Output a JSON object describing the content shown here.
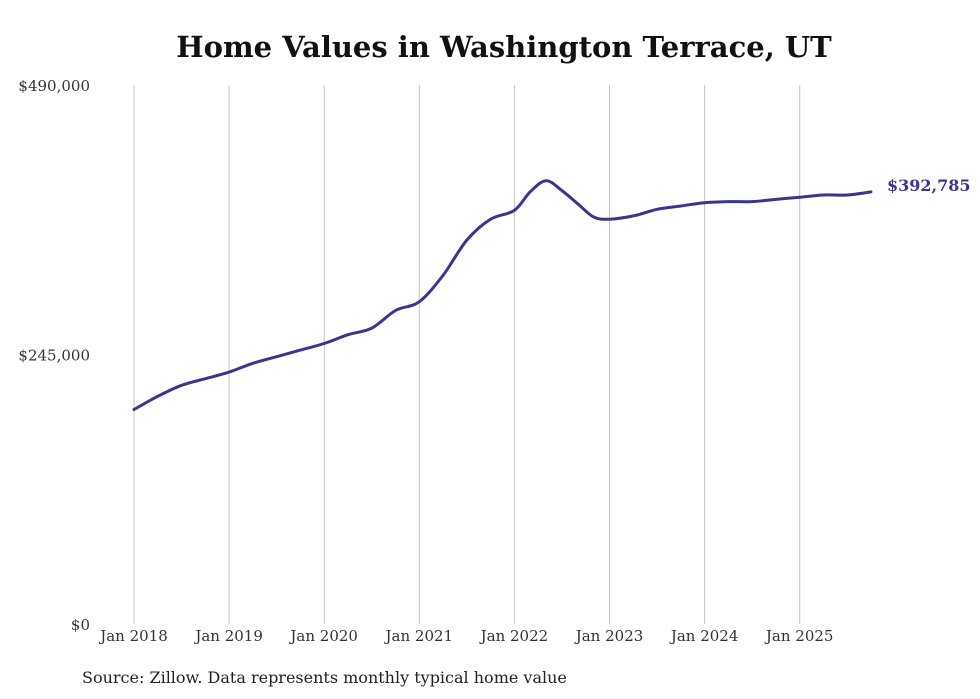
{
  "chart_data": {
    "type": "line",
    "title": "Home Values in Washington Terrace, UT",
    "xlabel": "",
    "ylabel": "",
    "x_ticks": [
      "Jan 2018",
      "Jan 2019",
      "Jan 2020",
      "Jan 2021",
      "Jan 2022",
      "Jan 2023",
      "Jan 2024",
      "Jan 2025"
    ],
    "y_ticks": [
      "$0",
      "$245,000",
      "$490,000"
    ],
    "y_tick_values": [
      0,
      245000,
      490000
    ],
    "ylim": [
      0,
      490000
    ],
    "xlim": [
      "2018-01",
      "2025-10"
    ],
    "grid": "vertical",
    "line_color": "#3b3590",
    "end_label": "$392,785",
    "series": [
      {
        "x": [
          "2018-01",
          "2018-04",
          "2018-07",
          "2018-10",
          "2019-01",
          "2019-04",
          "2019-07",
          "2019-10",
          "2020-01",
          "2020-04",
          "2020-07",
          "2020-10",
          "2021-01",
          "2021-04",
          "2021-07",
          "2021-10",
          "2022-01",
          "2022-03",
          "2022-05",
          "2022-07",
          "2022-09",
          "2022-11",
          "2023-01",
          "2023-04",
          "2023-07",
          "2023-10",
          "2024-01",
          "2024-04",
          "2024-07",
          "2024-10",
          "2025-01",
          "2025-04",
          "2025-07",
          "2025-10"
        ],
        "values": [
          195000,
          207000,
          217000,
          223000,
          229000,
          237000,
          243000,
          249000,
          255000,
          263000,
          269000,
          285000,
          293000,
          317000,
          349000,
          368000,
          376000,
          393000,
          403000,
          394000,
          382000,
          370000,
          368000,
          371000,
          377000,
          380000,
          383000,
          384000,
          384000,
          386000,
          388000,
          390000,
          390000,
          392785
        ]
      }
    ]
  },
  "footer": {
    "source": "Source: Zillow. Data represents monthly typical home value"
  }
}
